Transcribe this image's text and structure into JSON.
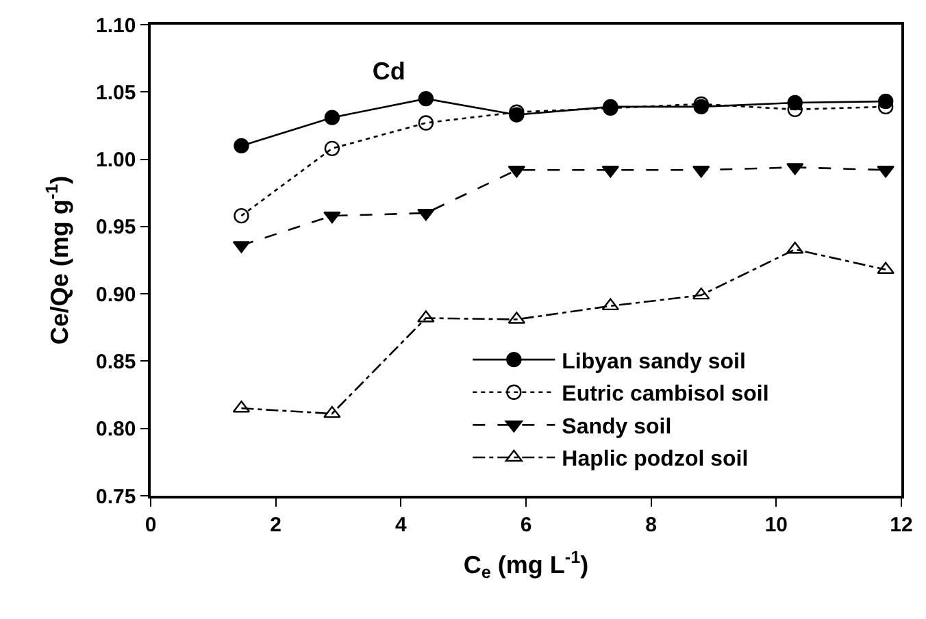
{
  "chart_data": {
    "type": "line",
    "title": "Cd",
    "xlabel": "C$_{e}$ (mg L$^{-1}$)",
    "ylabel": "Ce/Qe (mg g$^{-1}$)",
    "x": [
      1.45,
      2.9,
      4.4,
      5.85,
      7.35,
      8.8,
      10.3,
      11.75
    ],
    "series": [
      {
        "name": "Libyan sandy soil",
        "color": "#000000",
        "marker": "circle",
        "line_style": "solid",
        "values": [
          1.01,
          1.031,
          1.045,
          1.033,
          1.039,
          1.039,
          1.042,
          1.043
        ]
      },
      {
        "name": "Eutric cambisol soil",
        "color": "#000000",
        "marker": "circle-open",
        "line_style": "dotted",
        "values": [
          0.958,
          1.008,
          1.027,
          1.035,
          1.038,
          1.041,
          1.037,
          1.039
        ]
      },
      {
        "name": "Sandy soil",
        "color": "#000000",
        "marker": "triangle-down",
        "line_style": "dashed",
        "values": [
          0.936,
          0.958,
          0.96,
          0.992,
          0.992,
          0.992,
          0.994,
          0.992
        ]
      },
      {
        "name": "Haplic podzol soil",
        "color": "#000000",
        "marker": "triangle-up-open",
        "line_style": "dashdot",
        "values": [
          0.815,
          0.811,
          0.882,
          0.881,
          0.891,
          0.899,
          0.933,
          0.918
        ]
      }
    ],
    "xlim": [
      0,
      12
    ],
    "xticks": [
      0,
      2,
      4,
      6,
      8,
      10,
      12
    ],
    "ylim": [
      0.75,
      1.1
    ],
    "yticks": [
      {
        "value": 0.75,
        "label": "0.75"
      },
      {
        "value": 0.8,
        "label": "0.80"
      },
      {
        "value": 0.85,
        "label": "0.85"
      },
      {
        "value": 0.9,
        "label": "0.90"
      },
      {
        "value": 0.95,
        "label": "0.95"
      },
      {
        "value": 1.0,
        "label": "1.00"
      },
      {
        "value": 1.05,
        "label": "1.05"
      },
      {
        "value": 1.1,
        "label": "1.10"
      }
    ],
    "legend": "bottom right"
  }
}
